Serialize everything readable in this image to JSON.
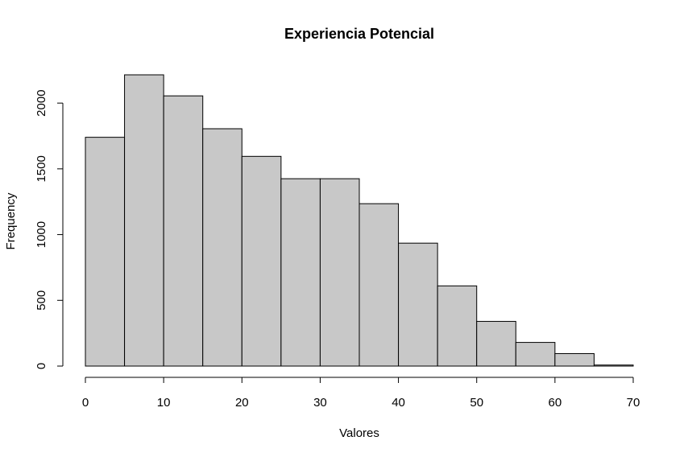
{
  "chart_data": {
    "type": "bar",
    "title": "Experiencia Potencial",
    "xlabel": "Valores",
    "ylabel": "Frequency",
    "bin_edges": [
      0,
      5,
      10,
      15,
      20,
      25,
      30,
      35,
      40,
      45,
      50,
      55,
      60,
      65,
      70
    ],
    "values": [
      1740,
      2215,
      2055,
      1805,
      1595,
      1425,
      1425,
      1235,
      935,
      610,
      340,
      180,
      95,
      8
    ],
    "xlim": [
      0,
      70
    ],
    "ylim": [
      0,
      2215
    ],
    "x_ticks": [
      0,
      10,
      20,
      30,
      40,
      50,
      60,
      70
    ],
    "y_ticks": [
      0,
      500,
      1000,
      1500,
      2000
    ],
    "grid": false,
    "colors": {
      "bar_fill": "#c8c8c8",
      "bar_stroke": "#000000"
    }
  }
}
